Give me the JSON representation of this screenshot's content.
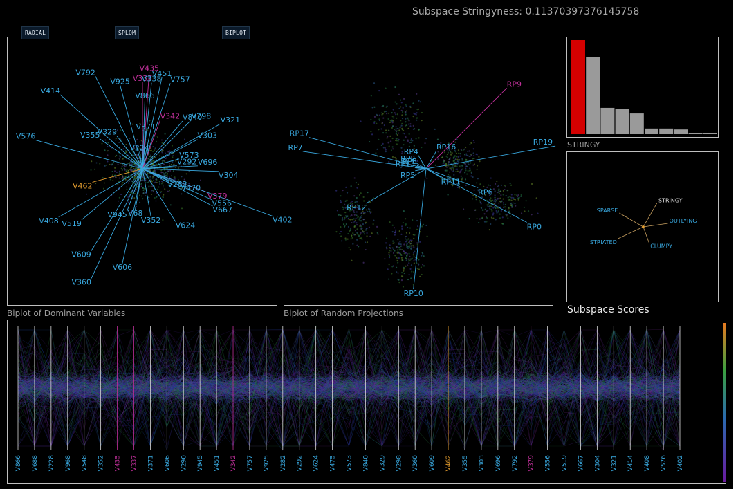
{
  "header": {
    "stringyness": "Subspace Stringyness: 0.11370397376145758"
  },
  "buttons": {
    "radial": "RADIAL",
    "splom": "SPLOM",
    "biplot": "BIPLOT"
  },
  "panels": {
    "dominant_caption": "Biplot of Dominant Variables",
    "random_caption": "Biplot of Random Projections",
    "bar_caption": "STRINGY",
    "scores_caption": "Subspace Scores"
  },
  "colors": {
    "background": "#000000",
    "axis_blue": "#39a9e0",
    "highlight_magenta": "#c0309a",
    "highlight_orange": "#e8a030",
    "bar_selected": "#d40000",
    "bar_other": "#9a9a9a"
  },
  "dominant_variables": [
    {
      "name": "V435",
      "angle": -86,
      "len": 140,
      "color": "magenta"
    },
    {
      "name": "V792",
      "angle": -117,
      "len": 150,
      "color": "blue"
    },
    {
      "name": "V414",
      "angle": -138,
      "len": 160,
      "color": "blue"
    },
    {
      "name": "V925",
      "angle": -105,
      "len": 125,
      "color": "blue"
    },
    {
      "name": "V337",
      "angle": -90,
      "len": 125,
      "color": "magenta"
    },
    {
      "name": "V338",
      "angle": -84,
      "len": 125,
      "color": "blue"
    },
    {
      "name": "V451",
      "angle": -78,
      "len": 135,
      "color": "blue"
    },
    {
      "name": "V757",
      "angle": -72,
      "len": 130,
      "color": "blue"
    },
    {
      "name": "V866",
      "angle": -88,
      "len": 100,
      "color": "blue"
    },
    {
      "name": "V298",
      "angle": -45,
      "len": 100,
      "color": "blue"
    },
    {
      "name": "V840",
      "angle": -50,
      "len": 90,
      "color": "blue"
    },
    {
      "name": "V321",
      "angle": -30,
      "len": 130,
      "color": "blue"
    },
    {
      "name": "V342",
      "angle": -70,
      "len": 75,
      "color": "magenta"
    },
    {
      "name": "V371",
      "angle": -85,
      "len": 55,
      "color": "blue"
    },
    {
      "name": "V303",
      "angle": -28,
      "len": 90,
      "color": "blue"
    },
    {
      "name": "V355",
      "angle": -145,
      "len": 75,
      "color": "blue"
    },
    {
      "name": "V329",
      "angle": -128,
      "len": 60,
      "color": "blue"
    },
    {
      "name": "V573",
      "angle": -15,
      "len": 55,
      "color": "blue"
    },
    {
      "name": "V576",
      "angle": -165,
      "len": 160,
      "color": "blue"
    },
    {
      "name": "V292",
      "angle": -5,
      "len": 50,
      "color": "blue"
    },
    {
      "name": "V696",
      "angle": -3,
      "len": 80,
      "color": "blue"
    },
    {
      "name": "V304",
      "angle": 2,
      "len": 110,
      "color": "blue"
    },
    {
      "name": "V224",
      "angle": -100,
      "len": 25,
      "color": "blue"
    },
    {
      "name": "V462",
      "angle": 165,
      "len": 75,
      "color": "orange"
    },
    {
      "name": "V282",
      "angle": 25,
      "len": 40,
      "color": "blue"
    },
    {
      "name": "V470",
      "angle": 22,
      "len": 60,
      "color": "blue"
    },
    {
      "name": "V379",
      "angle": 20,
      "len": 100,
      "color": "magenta"
    },
    {
      "name": "V556",
      "angle": 24,
      "len": 110,
      "color": "blue"
    },
    {
      "name": "V667",
      "angle": 28,
      "len": 115,
      "color": "blue"
    },
    {
      "name": "V402",
      "angle": 20,
      "len": 200,
      "color": "blue"
    },
    {
      "name": "V408",
      "angle": 150,
      "len": 140,
      "color": "blue"
    },
    {
      "name": "V519",
      "angle": 140,
      "len": 115,
      "color": "blue"
    },
    {
      "name": "V945",
      "angle": 110,
      "len": 65,
      "color": "blue"
    },
    {
      "name": "V68",
      "angle": 100,
      "len": 60,
      "color": "blue"
    },
    {
      "name": "V352",
      "angle": 80,
      "len": 70,
      "color": "blue"
    },
    {
      "name": "V624",
      "angle": 58,
      "len": 90,
      "color": "blue"
    },
    {
      "name": "V609",
      "angle": 122,
      "len": 140,
      "color": "blue"
    },
    {
      "name": "V606",
      "angle": 102,
      "len": 140,
      "color": "blue"
    },
    {
      "name": "V360",
      "angle": 115,
      "len": 175,
      "color": "blue"
    }
  ],
  "random_projections": [
    {
      "name": "RP9",
      "angle": -45,
      "len": 165,
      "color": "magenta"
    },
    {
      "name": "RP17",
      "angle": -165,
      "len": 175,
      "color": "blue"
    },
    {
      "name": "RP7",
      "angle": -172,
      "len": 180,
      "color": "blue"
    },
    {
      "name": "RP19",
      "angle": -10,
      "len": 190,
      "color": "blue"
    },
    {
      "name": "RP16",
      "angle": -60,
      "len": 30,
      "color": "blue"
    },
    {
      "name": "RP4",
      "angle": -120,
      "len": 22,
      "color": "blue"
    },
    {
      "name": "RP2",
      "angle": -150,
      "len": 18,
      "color": "blue"
    },
    {
      "name": "RP13",
      "angle": -175,
      "len": 16,
      "color": "blue"
    },
    {
      "name": "RP8",
      "angle": -160,
      "len": 14,
      "color": "blue"
    },
    {
      "name": "RP5",
      "angle": 170,
      "len": 16,
      "color": "blue"
    },
    {
      "name": "RP11",
      "angle": 30,
      "len": 25,
      "color": "blue"
    },
    {
      "name": "RP12",
      "angle": 150,
      "len": 100,
      "color": "blue"
    },
    {
      "name": "RP6",
      "angle": 20,
      "len": 80,
      "color": "blue"
    },
    {
      "name": "RP0",
      "angle": 28,
      "len": 165,
      "color": "blue"
    },
    {
      "name": "RP10",
      "angle": 96,
      "len": 175,
      "color": "blue"
    }
  ],
  "scagnostic_bars": [
    {
      "value": 1.0,
      "selected": true
    },
    {
      "value": 0.82,
      "selected": false
    },
    {
      "value": 0.28,
      "selected": false
    },
    {
      "value": 0.27,
      "selected": false
    },
    {
      "value": 0.22,
      "selected": false
    },
    {
      "value": 0.06,
      "selected": false
    },
    {
      "value": 0.06,
      "selected": false
    },
    {
      "value": 0.05,
      "selected": false
    },
    {
      "value": 0.01,
      "selected": false
    },
    {
      "value": 0.01,
      "selected": false
    }
  ],
  "subspace_scores": [
    {
      "name": "STRINGY",
      "angle": -60,
      "len": 40
    },
    {
      "name": "SPARSE",
      "angle": -150,
      "len": 40
    },
    {
      "name": "OUTLYING",
      "angle": -8,
      "len": 36
    },
    {
      "name": "STRIATED",
      "angle": 155,
      "len": 40
    },
    {
      "name": "CLUMPY",
      "angle": 70,
      "len": 24
    }
  ],
  "parallel_axes": [
    {
      "name": "V866",
      "color": "blue"
    },
    {
      "name": "V688",
      "color": "blue"
    },
    {
      "name": "V228",
      "color": "blue"
    },
    {
      "name": "V968",
      "color": "blue"
    },
    {
      "name": "V548",
      "color": "blue"
    },
    {
      "name": "V352",
      "color": "blue"
    },
    {
      "name": "V435",
      "color": "magenta"
    },
    {
      "name": "V337",
      "color": "magenta"
    },
    {
      "name": "V371",
      "color": "blue"
    },
    {
      "name": "V606",
      "color": "blue"
    },
    {
      "name": "V290",
      "color": "blue"
    },
    {
      "name": "V945",
      "color": "blue"
    },
    {
      "name": "V451",
      "color": "blue"
    },
    {
      "name": "V342",
      "color": "magenta"
    },
    {
      "name": "V757",
      "color": "blue"
    },
    {
      "name": "V925",
      "color": "blue"
    },
    {
      "name": "V282",
      "color": "blue"
    },
    {
      "name": "V292",
      "color": "blue"
    },
    {
      "name": "V624",
      "color": "blue"
    },
    {
      "name": "V475",
      "color": "blue"
    },
    {
      "name": "V573",
      "color": "blue"
    },
    {
      "name": "V840",
      "color": "blue"
    },
    {
      "name": "V329",
      "color": "blue"
    },
    {
      "name": "V298",
      "color": "blue"
    },
    {
      "name": "V360",
      "color": "blue"
    },
    {
      "name": "V609",
      "color": "blue"
    },
    {
      "name": "V462",
      "color": "orange"
    },
    {
      "name": "V355",
      "color": "blue"
    },
    {
      "name": "V303",
      "color": "blue"
    },
    {
      "name": "V696",
      "color": "blue"
    },
    {
      "name": "V792",
      "color": "blue"
    },
    {
      "name": "V379",
      "color": "magenta"
    },
    {
      "name": "V556",
      "color": "blue"
    },
    {
      "name": "V519",
      "color": "blue"
    },
    {
      "name": "V667",
      "color": "blue"
    },
    {
      "name": "V304",
      "color": "blue"
    },
    {
      "name": "V321",
      "color": "blue"
    },
    {
      "name": "V414",
      "color": "blue"
    },
    {
      "name": "V408",
      "color": "blue"
    },
    {
      "name": "V576",
      "color": "blue"
    },
    {
      "name": "V402",
      "color": "blue"
    }
  ]
}
